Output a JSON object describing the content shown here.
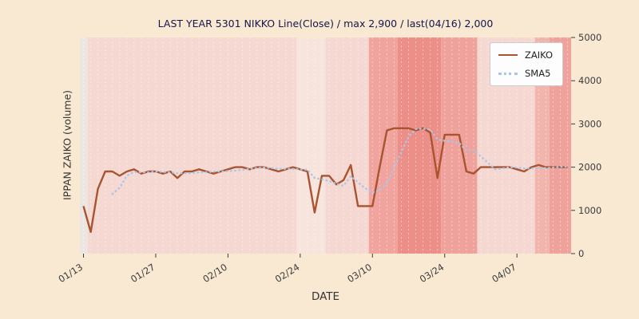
{
  "colors": {
    "figure_bg": "#f9e9d2",
    "zaiko_line": "#a9532f",
    "sma5_line": "#a9c6e8",
    "title_text": "#16164a",
    "tick_text": "#3b3b3b",
    "legend_bg": "#fdfdfd",
    "legend_border": "#cccccc",
    "grid_line": "#ffffff",
    "band_base": "#f6d8d2",
    "band_light": "#f6e4dd",
    "band_gray": "#ebe6e1",
    "band_medium": "#f0a49d",
    "band_dark": "#ec8f88"
  },
  "chart_data": {
    "type": "line",
    "title": "LAST YEAR 5301 NIKKO Line(Close) / max 2,900 / last(04/16) 2,000",
    "xlabel": "DATE",
    "ylabel": "IPPAN ZAIKO (volume)",
    "ylim": [
      0,
      5000
    ],
    "yticks": [
      0,
      1000,
      2000,
      3000,
      4000,
      5000
    ],
    "n_points": 68,
    "xticks": [
      {
        "index": 0,
        "label": "01/13"
      },
      {
        "index": 10,
        "label": "01/27"
      },
      {
        "index": 20,
        "label": "02/10"
      },
      {
        "index": 30,
        "label": "02/24"
      },
      {
        "index": 40,
        "label": "03/10"
      },
      {
        "index": 50,
        "label": "03/24"
      },
      {
        "index": 60,
        "label": "04/07"
      }
    ],
    "legend_position": "upper right",
    "grid": "vertical white dashed lines per trading day",
    "series": [
      {
        "name": "ZAIKO",
        "style": "solid",
        "color": "#a9532f",
        "values": [
          1100,
          500,
          1500,
          1900,
          1900,
          1800,
          1900,
          1950,
          1850,
          1900,
          1900,
          1850,
          1900,
          1750,
          1900,
          1900,
          1950,
          1900,
          1850,
          1900,
          1950,
          2000,
          2000,
          1950,
          2000,
          2000,
          1950,
          1900,
          1950,
          2000,
          1950,
          1900,
          950,
          1800,
          1800,
          1600,
          1700,
          2050,
          1100,
          1100,
          1100,
          2000,
          2850,
          2900,
          2900,
          2900,
          2850,
          2900,
          2800,
          1750,
          2750,
          2750,
          2750,
          1900,
          1850,
          2000,
          2000,
          2000,
          2000,
          2000,
          1950,
          1900,
          2000,
          2050,
          2000,
          2000,
          2000,
          2000
        ]
      },
      {
        "name": "SMA5",
        "style": "dotted",
        "color": "#a9c6e8",
        "derived": "5-point simple moving average of ZAIKO"
      }
    ],
    "background_bands": [
      {
        "start": -0.5,
        "end": 0.6,
        "color": "#ebe6e1"
      },
      {
        "start": 0.6,
        "end": 29.5,
        "color": "#f6d8d2"
      },
      {
        "start": 29.5,
        "end": 33.5,
        "color": "#f6e4dd"
      },
      {
        "start": 33.5,
        "end": 39.5,
        "color": "#f6d8d2"
      },
      {
        "start": 39.5,
        "end": 43.5,
        "color": "#f0a49d"
      },
      {
        "start": 43.5,
        "end": 49.5,
        "color": "#ec8f88"
      },
      {
        "start": 49.5,
        "end": 54.5,
        "color": "#efa29b"
      },
      {
        "start": 54.5,
        "end": 62.5,
        "color": "#f6d8d2"
      },
      {
        "start": 62.5,
        "end": 64.5,
        "color": "#f2b5ae"
      },
      {
        "start": 64.5,
        "end": 67.5,
        "color": "#efa29b"
      }
    ]
  }
}
